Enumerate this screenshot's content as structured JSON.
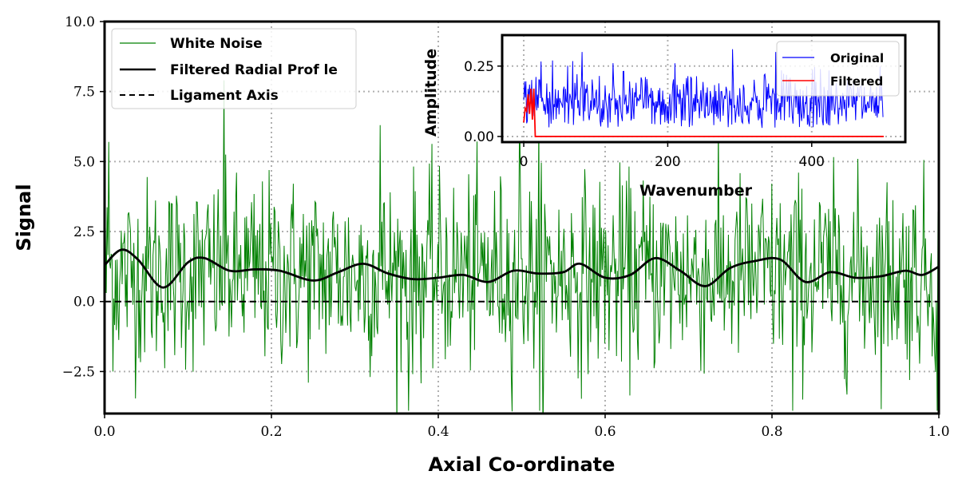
{
  "colors": {
    "noise": "#008000",
    "filtered": "#000000",
    "axis_line": "#000000",
    "grid": "#b0b0b0",
    "inset_original": "#0000ff",
    "inset_filtered": "#ff0000"
  },
  "chart_data": [
    {
      "id": "main",
      "type": "line",
      "xlabel": "Axial Co-ordinate",
      "ylabel": "Signal",
      "xlim": [
        0.0,
        1.0
      ],
      "ylim": [
        -4.0,
        10.0
      ],
      "x_ticks": [
        0.0,
        0.2,
        0.4,
        0.6,
        0.8,
        1.0
      ],
      "x_tick_labels": [
        "0.0",
        "0.2",
        "0.4",
        "0.6",
        "0.8",
        "1.0"
      ],
      "y_ticks": [
        -2.5,
        0.0,
        2.5,
        5.0,
        7.5,
        10.0
      ],
      "y_tick_labels": [
        "−2.5",
        "0.0",
        "2.5",
        "5.0",
        "7.5",
        "10.0"
      ],
      "grid": true,
      "legend_position": "top-left",
      "series": [
        {
          "name": "White Noise",
          "style": "solid-thin",
          "points": 1000,
          "mean": 1.0,
          "std": 1.7,
          "peaks": [
            [
              0.143,
              7.9
            ],
            [
              0.497,
              7.0
            ],
            [
              0.521,
              6.7
            ],
            [
              0.33,
              6.3
            ],
            [
              0.005,
              5.7
            ]
          ],
          "troughs": [
            [
              0.364,
              -3.9
            ],
            [
              0.522,
              -3.9
            ],
            [
              0.825,
              -3.9
            ],
            [
              0.998,
              -3.9
            ]
          ]
        },
        {
          "name": "Filtered Radial Prof le",
          "style": "solid-thick",
          "x": [
            0.0,
            0.02,
            0.04,
            0.07,
            0.1,
            0.12,
            0.15,
            0.18,
            0.21,
            0.25,
            0.28,
            0.31,
            0.34,
            0.37,
            0.4,
            0.43,
            0.46,
            0.49,
            0.52,
            0.55,
            0.57,
            0.6,
            0.63,
            0.66,
            0.69,
            0.72,
            0.75,
            0.78,
            0.81,
            0.84,
            0.87,
            0.9,
            0.93,
            0.96,
            0.98,
            1.0
          ],
          "values": [
            1.3,
            1.85,
            1.5,
            0.5,
            1.4,
            1.55,
            1.1,
            1.15,
            1.1,
            0.75,
            1.05,
            1.35,
            1.0,
            0.8,
            0.85,
            0.95,
            0.7,
            1.1,
            1.0,
            1.05,
            1.35,
            0.85,
            0.95,
            1.55,
            1.1,
            0.55,
            1.2,
            1.45,
            1.5,
            0.7,
            1.05,
            0.85,
            0.9,
            1.1,
            0.95,
            1.25
          ]
        },
        {
          "name": "Ligament Axis",
          "style": "dashed",
          "x": [
            0.0,
            1.0
          ],
          "values": [
            0.0,
            0.0
          ]
        }
      ]
    },
    {
      "id": "inset",
      "type": "line",
      "xlabel": "Wavenumber",
      "ylabel": "Amplitude",
      "xlim": [
        -30,
        530
      ],
      "ylim": [
        -0.02,
        0.36
      ],
      "x_ticks": [
        0,
        200,
        400
      ],
      "x_tick_labels": [
        "0",
        "200",
        "400"
      ],
      "y_ticks": [
        0.0,
        0.25
      ],
      "y_tick_labels": [
        "0.00",
        "0.25"
      ],
      "grid": true,
      "legend_position": "top-right",
      "series": [
        {
          "name": "Original",
          "points": 500,
          "x_range": [
            0,
            499
          ],
          "mean": 0.12,
          "peaks": [
            [
              81,
              0.3
            ],
            [
              290,
              0.31
            ],
            [
              350,
              0.3
            ]
          ]
        },
        {
          "name": "Filtered",
          "x": [
            0,
            2,
            4,
            6,
            8,
            10,
            12,
            14,
            16,
            18,
            20,
            500
          ],
          "values": [
            0.05,
            0.1,
            0.09,
            0.15,
            0.08,
            0.17,
            0.06,
            0.17,
            0.0,
            0.0,
            0.0,
            0.0
          ]
        }
      ]
    }
  ]
}
